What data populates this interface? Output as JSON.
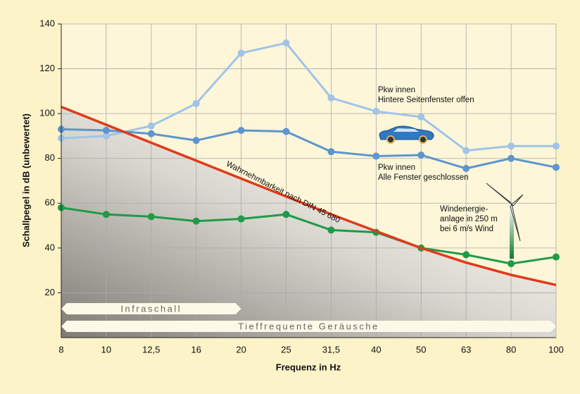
{
  "chart_data": {
    "type": "line",
    "x_label": "Frequenz in Hz",
    "y_label": "Schallpegel in dB (unbewertet)",
    "categories": [
      "8",
      "10",
      "12,5",
      "16",
      "20",
      "25",
      "31,5",
      "40",
      "50",
      "63",
      "80",
      "100"
    ],
    "ylim": [
      0,
      140
    ],
    "yticks": [
      20,
      40,
      60,
      80,
      100,
      120,
      140
    ],
    "grid": true,
    "series": [
      {
        "name": "Pkw innen Hintere Seitenfenster offen",
        "color": "#9fc4e8",
        "markers": true,
        "values": [
          89,
          90,
          94.5,
          104.5,
          127,
          131.5,
          107,
          101,
          98.5,
          83.5,
          85.5,
          85.5
        ]
      },
      {
        "name": "Pkw innen Alle Fenster geschlossen",
        "color": "#5d95cf",
        "markers": true,
        "values": [
          93,
          92.5,
          91,
          88,
          92.5,
          92,
          83,
          81,
          81.5,
          75.5,
          80,
          76
        ]
      },
      {
        "name": "Windenergieanlage in 250 m bei 6 m/s Wind",
        "color": "#1f9a48",
        "markers": true,
        "values": [
          58,
          55,
          54,
          52,
          53,
          55,
          48,
          47,
          40,
          37,
          33,
          36
        ]
      },
      {
        "name": "Wahrnehmbarkeit nach DIN 45 680",
        "color": "#e03a1c",
        "markers": false,
        "area": true,
        "values": [
          103,
          95,
          87,
          79,
          71,
          63,
          55,
          47.5,
          40,
          33.5,
          28,
          23.5
        ]
      }
    ],
    "annotations": [
      {
        "lines": [
          "Pkw innen",
          "Hintere Seitenfenster offen"
        ]
      },
      {
        "lines": [
          "Pkw innen",
          "Alle Fenster geschlossen"
        ]
      },
      {
        "lines": [
          "Windenergie-",
          "anlage in 250 m",
          "bei 6 m/s Wind"
        ]
      },
      {
        "lines": [
          "Wahrnehmbarkeit nach DIN 45 680"
        ]
      }
    ],
    "bands": [
      "Infraschall",
      "Tieffrequente Geräusche"
    ]
  }
}
